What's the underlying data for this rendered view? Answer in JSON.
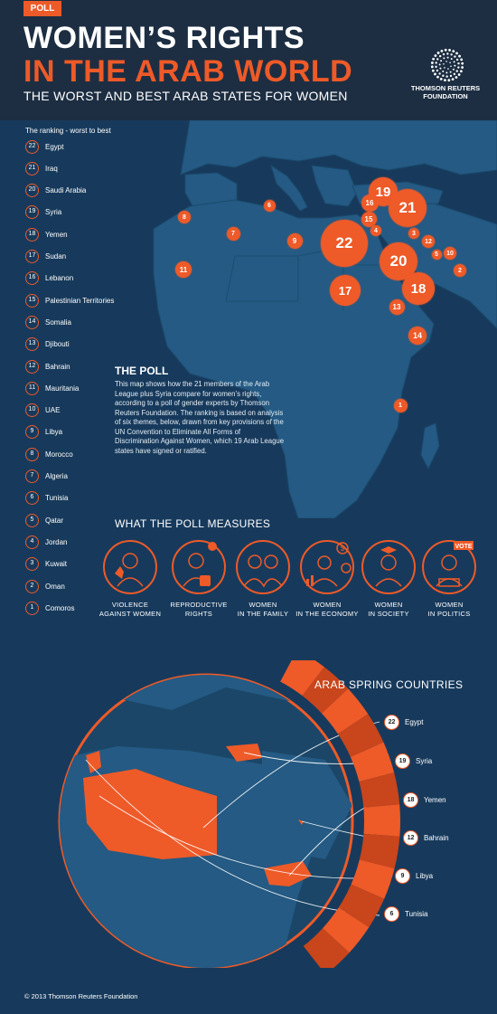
{
  "header": {
    "tag": "POLL",
    "title_line1": "WOMEN’S RIGHTS",
    "title_line2": "IN THE ARAB WORLD",
    "subtitle": "THE WORST AND BEST ARAB STATES FOR WOMEN",
    "logo_line1": "THOMSON REUTERS",
    "logo_line2": "FOUNDATION",
    "logo_icon": "thomson-reuters-dots-logo"
  },
  "colors": {
    "accent": "#ee5a28",
    "header_bg": "#1d2e42",
    "ocean": "#173a5c",
    "land": "#245a83"
  },
  "ranking": {
    "caption": "The ranking - worst to best",
    "items": [
      {
        "rank": "22",
        "name": "Egypt"
      },
      {
        "rank": "21",
        "name": "Iraq"
      },
      {
        "rank": "20",
        "name": "Saudi Arabia"
      },
      {
        "rank": "19",
        "name": "Syria"
      },
      {
        "rank": "18",
        "name": "Yemen"
      },
      {
        "rank": "17",
        "name": "Sudan"
      },
      {
        "rank": "16",
        "name": "Lebanon"
      },
      {
        "rank": "15",
        "name": "Palestinian Territories"
      },
      {
        "rank": "14",
        "name": "Somalia"
      },
      {
        "rank": "13",
        "name": "Djibouti"
      },
      {
        "rank": "12",
        "name": "Bahrain"
      },
      {
        "rank": "11",
        "name": "Mauritania"
      },
      {
        "rank": "10",
        "name": "UAE"
      },
      {
        "rank": "9",
        "name": "Libya"
      },
      {
        "rank": "8",
        "name": "Morocco"
      },
      {
        "rank": "7",
        "name": "Algeria"
      },
      {
        "rank": "6",
        "name": "Tunisia"
      },
      {
        "rank": "5",
        "name": "Qatar"
      },
      {
        "rank": "4",
        "name": "Jordan"
      },
      {
        "rank": "3",
        "name": "Kuwait"
      },
      {
        "rank": "2",
        "name": "Oman"
      },
      {
        "rank": "1",
        "name": "Comoros"
      }
    ]
  },
  "map_bubbles": [
    {
      "label": "19"
    },
    {
      "label": "21"
    },
    {
      "label": "16"
    },
    {
      "label": "15"
    },
    {
      "label": "4"
    },
    {
      "label": "3"
    },
    {
      "label": "12"
    },
    {
      "label": "5"
    },
    {
      "label": "10"
    },
    {
      "label": "2"
    },
    {
      "label": "22"
    },
    {
      "label": "20"
    },
    {
      "label": "18"
    },
    {
      "label": "17"
    },
    {
      "label": "13"
    },
    {
      "label": "14"
    },
    {
      "label": "1"
    },
    {
      "label": "6"
    },
    {
      "label": "8"
    },
    {
      "label": "7"
    },
    {
      "label": "9"
    },
    {
      "label": "11"
    }
  ],
  "poll": {
    "title": "THE POLL",
    "body": "This map shows how the 21 members of the Arab League plus Syria compare for women’s rights, according to a poll of gender experts by Thomson Reuters Foundation. The ranking is based on analysis of six themes, below, drawn from key provisions of the UN Convention to Eliminate All Forms of Discrimination Against Women, which 19 Arab League states have signed or ratified."
  },
  "measures": {
    "title": "WHAT THE POLL MEASURES",
    "items": [
      {
        "line1": "VIOLENCE",
        "line2": "AGAINST WOMEN",
        "icon": "violence-icon"
      },
      {
        "line1": "REPRODUCTIVE",
        "line2": "RIGHTS",
        "icon": "reproductive-icon"
      },
      {
        "line1": "WOMEN",
        "line2": "IN THE FAMILY",
        "icon": "family-icon"
      },
      {
        "line1": "WOMEN",
        "line2": "IN THE ECONOMY",
        "icon": "economy-icon"
      },
      {
        "line1": "WOMEN",
        "line2": "IN SOCIETY",
        "icon": "society-icon"
      },
      {
        "line1": "WOMEN",
        "line2": "IN POLITICS",
        "icon": "politics-icon",
        "badge": "VOTE"
      }
    ]
  },
  "arab_spring": {
    "title": "ARAB SPRING COUNTRIES",
    "items": [
      {
        "rank": "22",
        "name": "Egypt"
      },
      {
        "rank": "19",
        "name": "Syria"
      },
      {
        "rank": "18",
        "name": "Yemen"
      },
      {
        "rank": "12",
        "name": "Bahrain"
      },
      {
        "rank": "9",
        "name": "Libya"
      },
      {
        "rank": "6",
        "name": "Tunisia"
      }
    ]
  },
  "footer": "© 2013 Thomson Reuters Foundation"
}
